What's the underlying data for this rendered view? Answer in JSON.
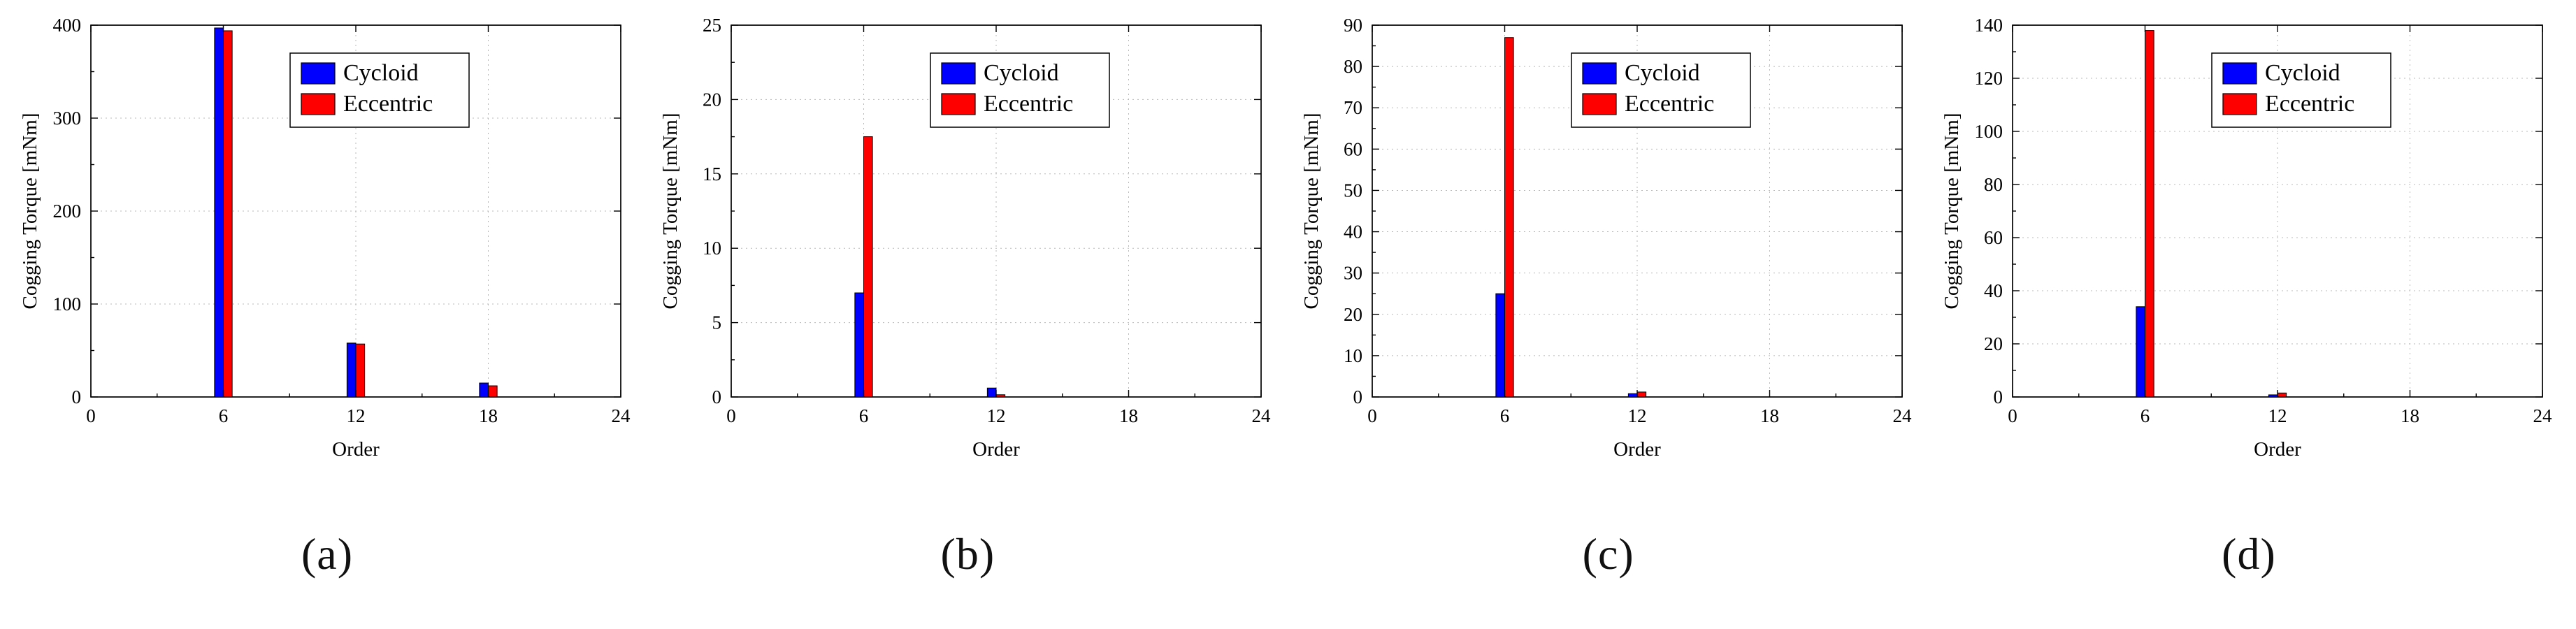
{
  "figure": {
    "type": "multi-panel-bar-figure",
    "panel_count": 4
  },
  "chart_data": [
    {
      "id": "a",
      "caption": "(a)",
      "type": "bar",
      "title": "",
      "xlabel": "Order",
      "ylabel": "Cogging Torque [mNm]",
      "xlim": [
        0,
        24
      ],
      "xticks": [
        0,
        6,
        12,
        18,
        24
      ],
      "ylim": [
        0,
        400
      ],
      "yticks": [
        0,
        100,
        200,
        300,
        400
      ],
      "grid": "dotted",
      "legend_position": "top-center",
      "categories": [
        6,
        12,
        18
      ],
      "series": [
        {
          "name": "Cycloid",
          "color": "#0000ff",
          "values": [
            397,
            58,
            15
          ]
        },
        {
          "name": "Eccentric",
          "color": "#ff0000",
          "values": [
            394,
            57,
            12
          ]
        }
      ]
    },
    {
      "id": "b",
      "caption": "(b)",
      "type": "bar",
      "title": "",
      "xlabel": "Order",
      "ylabel": "Cogging Torque [mNm]",
      "xlim": [
        0,
        24
      ],
      "xticks": [
        0,
        6,
        12,
        18,
        24
      ],
      "ylim": [
        0,
        25
      ],
      "yticks": [
        0,
        5,
        10,
        15,
        20,
        25
      ],
      "grid": "dotted",
      "legend_position": "top-center",
      "categories": [
        6,
        12,
        18
      ],
      "series": [
        {
          "name": "Cycloid",
          "color": "#0000ff",
          "values": [
            7,
            0.6,
            0
          ]
        },
        {
          "name": "Eccentric",
          "color": "#ff0000",
          "values": [
            17.5,
            0.15,
            0
          ]
        }
      ]
    },
    {
      "id": "c",
      "caption": "(c)",
      "type": "bar",
      "title": "",
      "xlabel": "Order",
      "ylabel": "Cogging Torque [mNm]",
      "xlim": [
        0,
        24
      ],
      "xticks": [
        0,
        6,
        12,
        18,
        24
      ],
      "ylim": [
        0,
        90
      ],
      "yticks": [
        0,
        10,
        20,
        30,
        40,
        50,
        60,
        70,
        80,
        90
      ],
      "grid": "dotted",
      "legend_position": "top-center",
      "categories": [
        6,
        12,
        18
      ],
      "series": [
        {
          "name": "Cycloid",
          "color": "#0000ff",
          "values": [
            25,
            0.8,
            0
          ]
        },
        {
          "name": "Eccentric",
          "color": "#ff0000",
          "values": [
            87,
            1.2,
            0
          ]
        }
      ]
    },
    {
      "id": "d",
      "caption": "(d)",
      "type": "bar",
      "title": "",
      "xlabel": "Order",
      "ylabel": "Cogging Torque [mNm]",
      "xlim": [
        0,
        24
      ],
      "xticks": [
        0,
        6,
        12,
        18,
        24
      ],
      "ylim": [
        0,
        140
      ],
      "yticks": [
        0,
        20,
        40,
        60,
        80,
        100,
        120,
        140
      ],
      "grid": "dotted",
      "legend_position": "top-center",
      "categories": [
        6,
        12,
        18
      ],
      "series": [
        {
          "name": "Cycloid",
          "color": "#0000ff",
          "values": [
            34,
            0.8,
            0
          ]
        },
        {
          "name": "Eccentric",
          "color": "#ff0000",
          "values": [
            138,
            1.5,
            0
          ]
        }
      ]
    }
  ]
}
